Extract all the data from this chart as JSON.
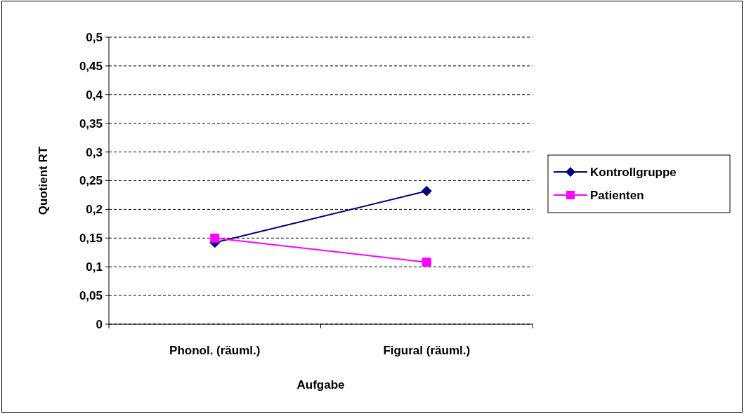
{
  "chart_data": {
    "type": "line",
    "xlabel": "Aufgabe",
    "ylabel": "Quotient RT",
    "categories": [
      "Phonol. (räuml.)",
      "Figural (räuml.)"
    ],
    "series": [
      {
        "name": "Kontrollgruppe",
        "color": "#000080",
        "values": [
          0.142,
          0.232
        ],
        "marker": "diamond"
      },
      {
        "name": "Patienten",
        "color": "#ff00ff",
        "values": [
          0.15,
          0.108
        ],
        "marker": "square"
      }
    ],
    "ylim": [
      0,
      0.5
    ],
    "yticks": [
      {
        "value": 0,
        "label": "0"
      },
      {
        "value": 0.05,
        "label": "0,05"
      },
      {
        "value": 0.1,
        "label": "0,1"
      },
      {
        "value": 0.15,
        "label": "0,15"
      },
      {
        "value": 0.2,
        "label": "0,2"
      },
      {
        "value": 0.25,
        "label": "0,25"
      },
      {
        "value": 0.3,
        "label": "0,3"
      },
      {
        "value": 0.35,
        "label": "0,35"
      },
      {
        "value": 0.4,
        "label": "0,4"
      },
      {
        "value": 0.45,
        "label": "0,45"
      },
      {
        "value": 0.5,
        "label": "0,5"
      }
    ],
    "grid": "y",
    "legend": "right"
  }
}
